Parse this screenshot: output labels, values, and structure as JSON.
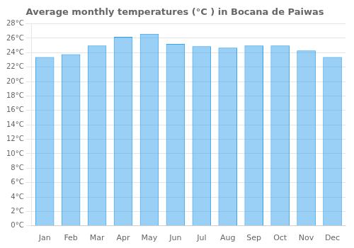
{
  "chart_data": {
    "type": "bar",
    "title": "Average monthly temperatures (°C ) in Bocana de Paiwas",
    "categories": [
      "Jan",
      "Feb",
      "Mar",
      "Apr",
      "May",
      "Jun",
      "Jul",
      "Aug",
      "Sep",
      "Oct",
      "Nov",
      "Dec"
    ],
    "values": [
      23.4,
      23.8,
      25.0,
      26.2,
      26.6,
      25.2,
      24.9,
      24.7,
      25.0,
      25.0,
      24.3,
      23.4
    ],
    "ylim": [
      0,
      28
    ],
    "yticks": [
      {
        "value": 0,
        "label": "0°C"
      },
      {
        "value": 2,
        "label": "2°C"
      },
      {
        "value": 4,
        "label": "4°C"
      },
      {
        "value": 6,
        "label": "6°C"
      },
      {
        "value": 8,
        "label": "8°C"
      },
      {
        "value": 10,
        "label": "10°C"
      },
      {
        "value": 12,
        "label": "12°C"
      },
      {
        "value": 14,
        "label": "14°C"
      },
      {
        "value": 16,
        "label": "16°C"
      },
      {
        "value": 18,
        "label": "18°C"
      },
      {
        "value": 20,
        "label": "20°C"
      },
      {
        "value": 22,
        "label": "22°C"
      },
      {
        "value": 24,
        "label": "24°C"
      },
      {
        "value": 26,
        "label": "26°C"
      },
      {
        "value": 28,
        "label": "28°C"
      }
    ],
    "grid": true
  }
}
